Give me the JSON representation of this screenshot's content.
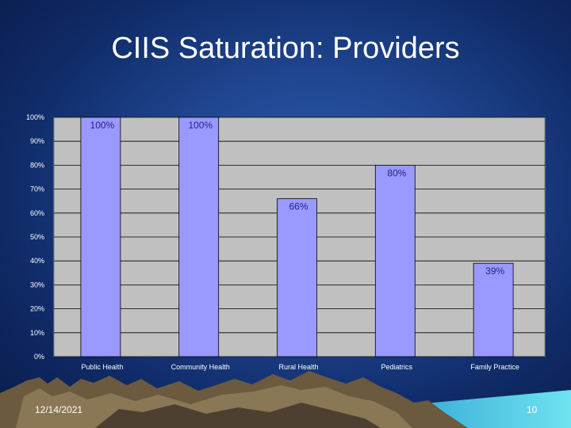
{
  "slide": {
    "title": "CIIS Saturation: Providers",
    "date": "12/14/2021",
    "page_number": "10"
  },
  "colors": {
    "background": "#1f4690",
    "plot_area": "#c0c0c0",
    "bar_fill": "#9999ff",
    "bar_outline": "#000000",
    "data_label": "#222288",
    "text": "#ffffff"
  },
  "chart_data": {
    "type": "bar",
    "categories": [
      "Public Health",
      "Community Health",
      "Rural Health",
      "Pediatrics",
      "Family Practice"
    ],
    "values": [
      100,
      100,
      66,
      80,
      39
    ],
    "data_labels": [
      "100%",
      "100%",
      "66%",
      "80%",
      "39%"
    ],
    "y_ticks": [
      "0%",
      "10%",
      "20%",
      "30%",
      "40%",
      "50%",
      "60%",
      "70%",
      "80%",
      "90%",
      "100%"
    ],
    "ylim": [
      0,
      100
    ],
    "grid": true,
    "legend": "none"
  }
}
